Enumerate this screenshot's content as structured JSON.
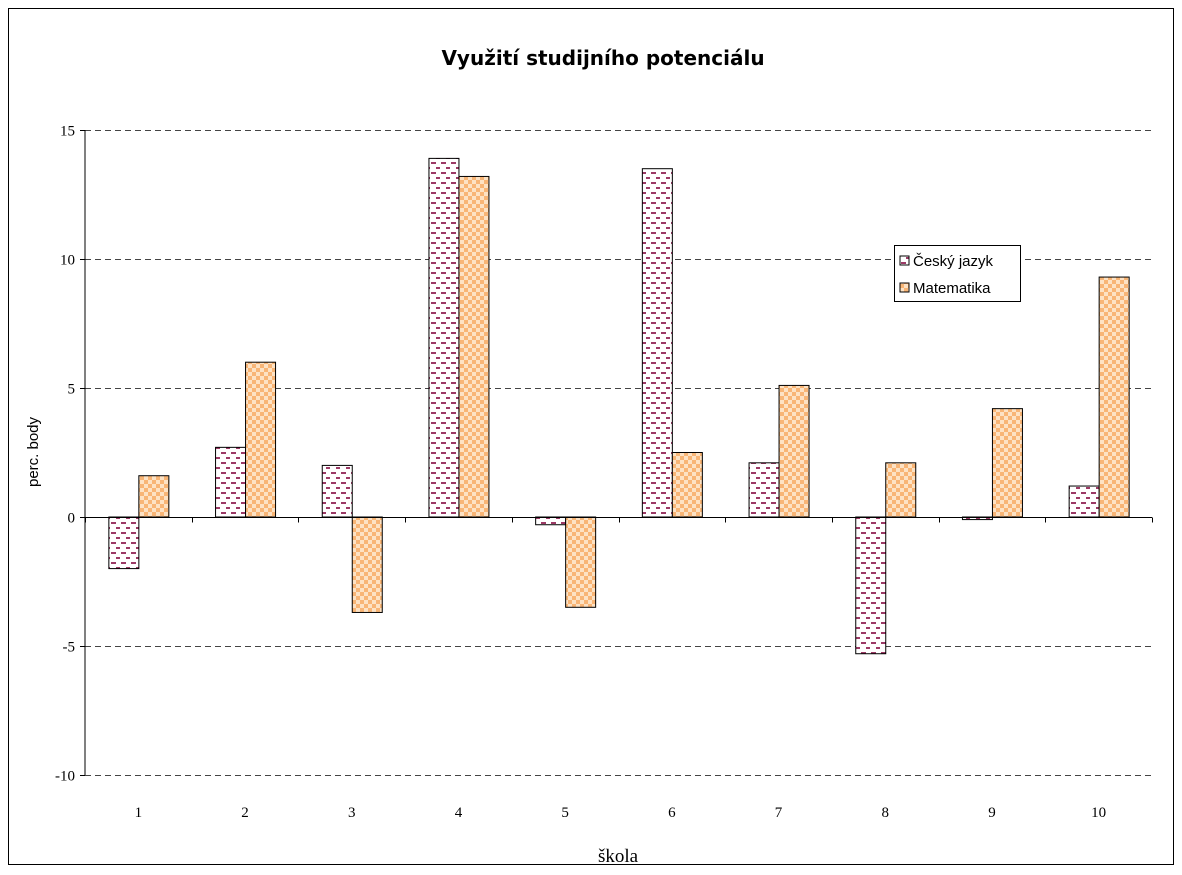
{
  "colors": {
    "cesky_base": "#ffffff",
    "cesky_dash": "#9c3a66",
    "mat_base": "#fde2c4",
    "mat_check": "#f8b576",
    "grid": "#444444",
    "axis": "#000000"
  },
  "chart_data": {
    "type": "bar",
    "title": "Využití studijního potenciálu",
    "xlabel": "škola",
    "ylabel": "perc. body",
    "categories": [
      "1",
      "2",
      "3",
      "4",
      "5",
      "6",
      "7",
      "8",
      "9",
      "10"
    ],
    "series": [
      {
        "name": "Český jazyk",
        "values": [
          -2.0,
          2.7,
          2.0,
          13.9,
          -0.3,
          13.5,
          2.1,
          -5.3,
          -0.1,
          1.2
        ]
      },
      {
        "name": "Matematika",
        "values": [
          1.6,
          6.0,
          -3.7,
          13.2,
          -3.5,
          2.5,
          5.1,
          2.1,
          4.2,
          9.3
        ]
      }
    ],
    "ylim": [
      -10,
      15
    ],
    "yticks": [
      "-10",
      "-5",
      "0",
      "5",
      "10",
      "15"
    ],
    "grid": true,
    "legend_position": "right"
  }
}
